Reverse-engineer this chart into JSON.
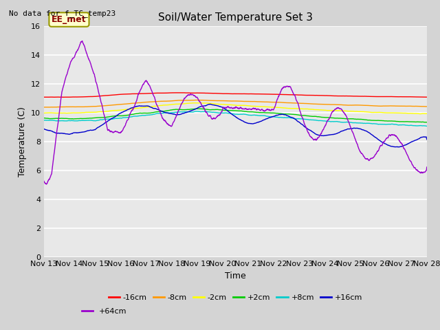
{
  "title": "Soil/Water Temperature Set 3",
  "xlabel": "Time",
  "ylabel": "Temperature (C)",
  "no_data_text": "No data for f_TC_temp23",
  "legend_label_text": "EE_met",
  "ylim": [
    0,
    16
  ],
  "yticks": [
    0,
    2,
    4,
    6,
    8,
    10,
    12,
    14,
    16
  ],
  "x_tick_labels": [
    "Nov 13",
    "Nov 14",
    "Nov 15",
    "Nov 16",
    "Nov 17",
    "Nov 18",
    "Nov 19",
    "Nov 20",
    "Nov 21",
    "Nov 22",
    "Nov 23",
    "Nov 24",
    "Nov 25",
    "Nov 26",
    "Nov 27",
    "Nov 28"
  ],
  "series": [
    {
      "label": "-16cm",
      "color": "#ff0000"
    },
    {
      "label": "-8cm",
      "color": "#ff9900"
    },
    {
      "label": "-2cm",
      "color": "#ffff00"
    },
    {
      "label": "+2cm",
      "color": "#00cc00"
    },
    {
      "label": "+8cm",
      "color": "#00cccc"
    },
    {
      "label": "+16cm",
      "color": "#0000cc"
    },
    {
      "label": "+64cm",
      "color": "#9900cc"
    }
  ],
  "plot_bg_color": "#e8e8e8",
  "fig_bg_color": "#d4d4d4",
  "grid_color": "#ffffff",
  "title_fontsize": 11,
  "axis_label_fontsize": 9,
  "tick_fontsize": 8,
  "legend_fontsize": 8
}
